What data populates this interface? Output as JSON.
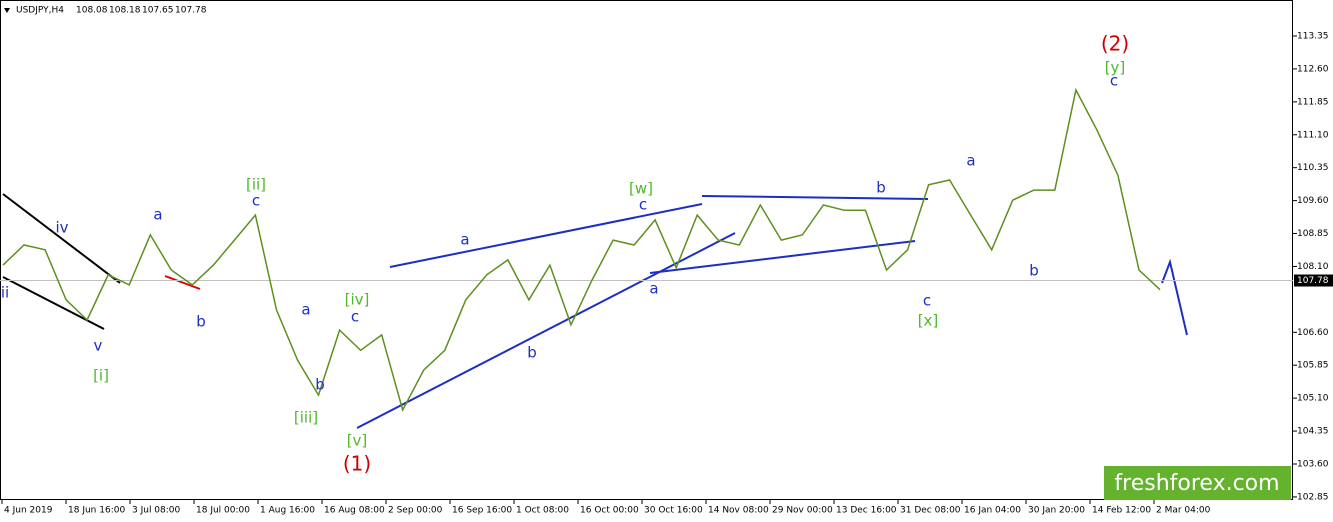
{
  "chart_data": {
    "type": "line",
    "title": "USDJPY,H4",
    "ohlc": [
      108.08,
      108.18,
      107.65,
      107.78
    ],
    "current_price": 107.78,
    "color": "#5f8f1f",
    "values": [
      108.13,
      108.59,
      108.48,
      107.34,
      106.88,
      107.91,
      107.68,
      108.82,
      108.02,
      107.68,
      108.13,
      108.7,
      109.27,
      107.11,
      105.97,
      105.17,
      106.65,
      106.19,
      106.54,
      104.83,
      105.74,
      106.19,
      107.34,
      107.91,
      108.25,
      107.34,
      108.13,
      106.77,
      107.79,
      108.7,
      108.59,
      109.16,
      108.07,
      109.27,
      108.7,
      108.59,
      109.5,
      108.7,
      108.82,
      109.5,
      109.38,
      109.38,
      108.02,
      108.48,
      109.96,
      110.07,
      109.27,
      108.48,
      109.61,
      109.84,
      109.84,
      112.12,
      111.21,
      110.18,
      108.02,
      107.57
    ],
    "ylim": [
      102.78,
      114.17
    ],
    "yticks": [
      {
        "value": 102.85,
        "label": "102.85"
      },
      {
        "value": 103.6,
        "label": "103.60"
      },
      {
        "value": 104.35,
        "label": "104.35"
      },
      {
        "value": 105.1,
        "label": "105.10"
      },
      {
        "value": 105.85,
        "label": "105.85"
      },
      {
        "value": 106.6,
        "label": "106.60"
      },
      {
        "value": 108.1,
        "label": "108.10"
      },
      {
        "value": 108.85,
        "label": "108.85"
      },
      {
        "value": 109.6,
        "label": "109.60"
      },
      110.35,
      {
        "value": 111.1,
        "label": "111.10"
      },
      {
        "value": 111.85,
        "label": "111.85"
      },
      {
        "value": 112.6,
        "label": "112.60"
      },
      113.35
    ],
    "xticks": [
      "4 Jun 2019",
      "18 Jun 16:00",
      "3 Jul 08:00",
      "18 Jul 00:00",
      "1 Aug 16:00",
      "16 Aug 08:00",
      "2 Sep 00:00",
      "16 Sep 16:00",
      "1 Oct 08:00",
      "16 Oct 00:00",
      "30 Oct 16:00",
      "14 Nov 08:00",
      "29 Nov 00:00",
      "13 Dec 16:00",
      "31 Dec 08:00",
      "16 Jan 04:00",
      "30 Jan 20:00",
      "14 Feb 12:00",
      "2 Mar 04:00"
    ],
    "annotations": [
      "ii",
      "iv",
      "v",
      "[i]",
      "a",
      "b",
      "[ii]",
      "c",
      "a",
      "b",
      "[iii]",
      "[iv]",
      "c",
      "[v]",
      "(1)",
      "a",
      "b",
      "[w]",
      "c",
      "a",
      "b",
      "c",
      "[x]",
      "a",
      "b",
      "(2)",
      "[y]",
      "c"
    ],
    "watermark": "freshforex.com"
  }
}
